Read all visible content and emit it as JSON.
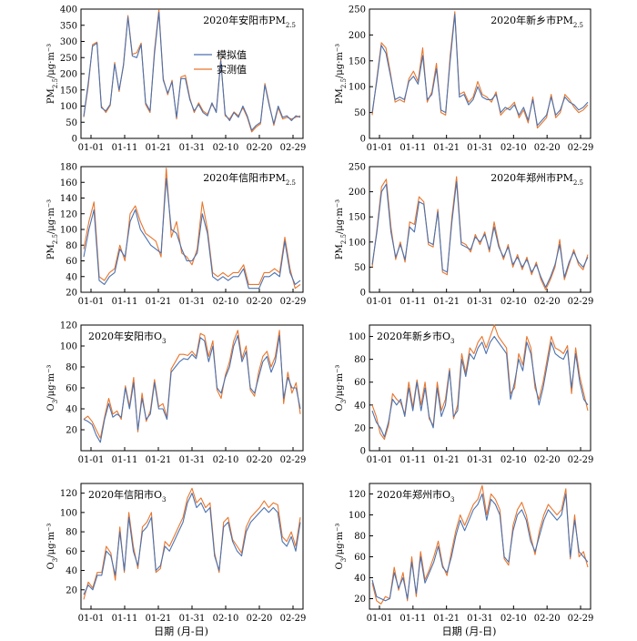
{
  "figure": {
    "xlabel": "日期 (月-日)",
    "legend": [
      {
        "label": "模拟值",
        "color": "#4a72b0"
      },
      {
        "label": "实测值",
        "color": "#e8762d"
      }
    ],
    "x_ticks": [
      "01-01",
      "01-11",
      "01-21",
      "01-31",
      "02-10",
      "02-20",
      "02-29"
    ],
    "colors": {
      "sim": "#4a72b0",
      "obs": "#e8762d"
    }
  },
  "chart_data": [
    {
      "type": "line",
      "title": "2020年安阳市PM2.5",
      "title_parts": [
        "2020年安阳市PM",
        "2.5"
      ],
      "ylabel": "PM2.5/μg·m⁻³",
      "ylabel_parts": [
        "PM",
        "2.5",
        "/μg·m⁻³"
      ],
      "ylim": [
        0,
        400
      ],
      "yticks": [
        0,
        50,
        100,
        150,
        200,
        250,
        300,
        350,
        400
      ],
      "legend_shown": true,
      "series": [
        {
          "name": "模拟值",
          "values": [
            68,
            170,
            285,
            295,
            95,
            85,
            105,
            230,
            150,
            225,
            375,
            255,
            250,
            290,
            110,
            85,
            260,
            390,
            180,
            140,
            175,
            65,
            185,
            185,
            120,
            85,
            105,
            80,
            70,
            110,
            80,
            240,
            75,
            55,
            80,
            65,
            100,
            70,
            25,
            40,
            50,
            165,
            100,
            45,
            100,
            65,
            70,
            55,
            70,
            65
          ]
        },
        {
          "name": "实测值",
          "values": [
            66,
            160,
            290,
            298,
            100,
            80,
            102,
            235,
            145,
            230,
            380,
            260,
            265,
            295,
            105,
            80,
            270,
            398,
            185,
            135,
            180,
            60,
            190,
            195,
            125,
            80,
            110,
            85,
            75,
            105,
            85,
            245,
            70,
            60,
            82,
            70,
            95,
            65,
            20,
            35,
            45,
            170,
            105,
            40,
            95,
            60,
            65,
            60,
            65,
            70
          ]
        }
      ]
    },
    {
      "type": "line",
      "title": "2020年新乡市PM2.5",
      "title_parts": [
        "2020年新乡市PM",
        "2.5"
      ],
      "ylabel": "PM2.5/μg·m⁻³",
      "ylabel_parts": [
        "PM",
        "2.5",
        "/μg·m⁻³"
      ],
      "ylim": [
        0,
        250
      ],
      "yticks": [
        0,
        50,
        100,
        150,
        200,
        250
      ],
      "legend_shown": false,
      "series": [
        {
          "name": "模拟值",
          "values": [
            50,
            110,
            180,
            165,
            120,
            75,
            80,
            75,
            110,
            120,
            105,
            160,
            75,
            85,
            135,
            55,
            50,
            150,
            240,
            80,
            85,
            65,
            75,
            100,
            80,
            75,
            75,
            85,
            50,
            60,
            55,
            65,
            45,
            60,
            35,
            75,
            25,
            35,
            45,
            80,
            45,
            55,
            80,
            70,
            65,
            55,
            60,
            70
          ]
        },
        {
          "name": "实测值",
          "values": [
            45,
            115,
            185,
            175,
            125,
            70,
            75,
            70,
            115,
            130,
            110,
            175,
            70,
            90,
            145,
            50,
            45,
            160,
            245,
            85,
            90,
            70,
            80,
            110,
            85,
            80,
            70,
            90,
            45,
            55,
            60,
            70,
            40,
            55,
            30,
            80,
            20,
            30,
            40,
            85,
            40,
            50,
            85,
            75,
            60,
            50,
            55,
            65
          ]
        }
      ]
    },
    {
      "type": "line",
      "title": "2020年信阳市PM2.5",
      "title_parts": [
        "2020年信阳市PM",
        "2.5"
      ],
      "ylabel": "PM2.5/μg·m⁻³",
      "ylabel_parts": [
        "PM",
        "2.5",
        "/μg·m⁻³"
      ],
      "ylim": [
        20,
        180
      ],
      "yticks": [
        20,
        40,
        60,
        80,
        100,
        120,
        140,
        160,
        180
      ],
      "legend_shown": false,
      "series": [
        {
          "name": "模拟值",
          "values": [
            65,
            100,
            125,
            35,
            30,
            40,
            45,
            75,
            65,
            110,
            125,
            100,
            90,
            80,
            75,
            70,
            165,
            100,
            95,
            75,
            60,
            60,
            70,
            120,
            95,
            40,
            35,
            40,
            35,
            40,
            40,
            50,
            25,
            25,
            25,
            40,
            40,
            45,
            40,
            85,
            45,
            30,
            35
          ]
        },
        {
          "name": "实测值",
          "values": [
            75,
            110,
            135,
            40,
            35,
            45,
            50,
            80,
            60,
            120,
            130,
            110,
            95,
            90,
            85,
            65,
            178,
            90,
            110,
            70,
            65,
            55,
            75,
            135,
            100,
            45,
            40,
            45,
            40,
            45,
            45,
            55,
            30,
            30,
            30,
            45,
            45,
            50,
            45,
            90,
            50,
            25,
            30
          ]
        }
      ]
    },
    {
      "type": "line",
      "title": "2020年郑州市PM2.5",
      "title_parts": [
        "2020年郑州市PM",
        "2.5"
      ],
      "ylabel": "PM2.5/μg·m⁻³",
      "ylabel_parts": [
        "PM",
        "2.5",
        "/μg·m⁻³"
      ],
      "ylim": [
        0,
        250
      ],
      "yticks": [
        0,
        50,
        100,
        150,
        200,
        250
      ],
      "legend_shown": false,
      "series": [
        {
          "name": "模拟值",
          "values": [
            55,
            120,
            200,
            215,
            120,
            70,
            95,
            65,
            130,
            120,
            180,
            175,
            100,
            95,
            160,
            45,
            40,
            140,
            220,
            95,
            90,
            85,
            110,
            100,
            115,
            85,
            130,
            90,
            70,
            90,
            55,
            70,
            50,
            65,
            40,
            55,
            30,
            10,
            30,
            55,
            95,
            30,
            60,
            80,
            60,
            50,
            70
          ]
        },
        {
          "name": "实测值",
          "values": [
            50,
            125,
            210,
            225,
            130,
            65,
            100,
            60,
            140,
            135,
            190,
            180,
            95,
            90,
            165,
            40,
            35,
            150,
            230,
            100,
            95,
            80,
            115,
            95,
            120,
            80,
            140,
            95,
            65,
            95,
            50,
            75,
            45,
            70,
            35,
            60,
            25,
            5,
            25,
            50,
            105,
            25,
            55,
            85,
            55,
            45,
            75
          ]
        }
      ]
    },
    {
      "type": "line",
      "title": "2020年安阳市O3",
      "title_parts": [
        "2020年安阳市O",
        "3"
      ],
      "ylabel": "O3/μg·m⁻³",
      "ylabel_parts": [
        "O",
        "3",
        "/μg·m⁻³"
      ],
      "ylim": [
        0,
        120
      ],
      "yticks": [
        20,
        40,
        60,
        80,
        100,
        120
      ],
      "legend_shown": false,
      "series": [
        {
          "name": "模拟值",
          "values": [
            30,
            28,
            25,
            15,
            8,
            30,
            45,
            32,
            35,
            32,
            60,
            40,
            65,
            20,
            50,
            30,
            35,
            65,
            40,
            40,
            30,
            75,
            80,
            85,
            88,
            87,
            92,
            88,
            108,
            105,
            85,
            100,
            60,
            55,
            70,
            80,
            100,
            110,
            85,
            95,
            60,
            55,
            70,
            85,
            90,
            75,
            85,
            110,
            50,
            70,
            60,
            60,
            40
          ]
        },
        {
          "name": "实测值",
          "values": [
            30,
            33,
            28,
            20,
            12,
            32,
            50,
            35,
            38,
            30,
            62,
            42,
            70,
            18,
            55,
            28,
            38,
            68,
            42,
            45,
            32,
            78,
            85,
            92,
            92,
            91,
            95,
            90,
            112,
            110,
            90,
            105,
            58,
            50,
            72,
            85,
            105,
            115,
            88,
            100,
            58,
            52,
            75,
            90,
            95,
            80,
            90,
            115,
            45,
            75,
            55,
            65,
            35
          ]
        }
      ]
    },
    {
      "type": "line",
      "title": "2020年新乡市O3",
      "title_parts": [
        "2020年新乡市O",
        "3"
      ],
      "ylabel": "O3/μg·m⁻³",
      "ylabel_parts": [
        "O",
        "3",
        "/μg·m⁻³"
      ],
      "ylim": [
        0,
        110
      ],
      "yticks": [
        0,
        20,
        40,
        60,
        80,
        100
      ],
      "legend_shown": false,
      "series": [
        {
          "name": "模拟值",
          "values": [
            35,
            25,
            20,
            12,
            25,
            45,
            40,
            45,
            30,
            55,
            35,
            60,
            35,
            55,
            30,
            20,
            55,
            30,
            40,
            70,
            30,
            35,
            80,
            65,
            85,
            80,
            90,
            95,
            85,
            95,
            100,
            95,
            90,
            85,
            45,
            60,
            80,
            70,
            95,
            85,
            60,
            40,
            55,
            75,
            95,
            85,
            82,
            80,
            88,
            55,
            85,
            60,
            45,
            40
          ]
        },
        {
          "name": "实测值",
          "values": [
            40,
            30,
            15,
            10,
            22,
            50,
            45,
            42,
            32,
            60,
            38,
            62,
            40,
            60,
            28,
            22,
            60,
            35,
            45,
            72,
            28,
            40,
            85,
            68,
            90,
            85,
            95,
            100,
            90,
            100,
            110,
            100,
            95,
            90,
            50,
            55,
            85,
            75,
            100,
            90,
            55,
            45,
            60,
            80,
            100,
            90,
            88,
            85,
            92,
            50,
            90,
            65,
            50,
            35
          ]
        }
      ]
    },
    {
      "type": "line",
      "title": "2020年信阳市O3",
      "title_parts": [
        "2020年信阳市O",
        "3"
      ],
      "ylabel": "O3/μg·m⁻³",
      "ylabel_parts": [
        "O",
        "3",
        "/μg·m⁻³"
      ],
      "ylim": [
        0,
        130
      ],
      "yticks": [
        20,
        40,
        60,
        80,
        100,
        120
      ],
      "legend_shown": false,
      "series": [
        {
          "name": "模拟值",
          "values": [
            15,
            25,
            20,
            35,
            35,
            60,
            55,
            35,
            80,
            40,
            95,
            60,
            45,
            80,
            85,
            95,
            40,
            45,
            65,
            60,
            70,
            80,
            90,
            110,
            120,
            105,
            110,
            100,
            105,
            55,
            40,
            85,
            90,
            70,
            60,
            55,
            80,
            90,
            95,
            100,
            105,
            100,
            105,
            100,
            70,
            65,
            75,
            60,
            90
          ]
        },
        {
          "name": "实测值",
          "values": [
            10,
            28,
            22,
            38,
            38,
            65,
            58,
            30,
            85,
            38,
            100,
            65,
            42,
            85,
            90,
            100,
            38,
            42,
            70,
            65,
            75,
            85,
            95,
            115,
            125,
            110,
            115,
            105,
            110,
            58,
            38,
            90,
            95,
            72,
            65,
            58,
            85,
            95,
            100,
            105,
            112,
            105,
            110,
            108,
            75,
            70,
            80,
            65,
            95
          ]
        }
      ]
    },
    {
      "type": "line",
      "title": "2020年郑州市O3",
      "title_parts": [
        "2020年郑州市O",
        "3"
      ],
      "ylabel": "O3/μg·m⁻³",
      "ylabel_parts": [
        "O",
        "3",
        "/μg·m⁻³"
      ],
      "ylim": [
        10,
        130
      ],
      "yticks": [
        20,
        40,
        60,
        80,
        100,
        120
      ],
      "legend_shown": false,
      "series": [
        {
          "name": "模拟值",
          "values": [
            38,
            22,
            20,
            18,
            20,
            45,
            30,
            40,
            20,
            55,
            25,
            60,
            35,
            45,
            55,
            70,
            50,
            45,
            60,
            80,
            95,
            85,
            95,
            105,
            110,
            120,
            95,
            115,
            110,
            100,
            60,
            55,
            85,
            100,
            105,
            95,
            75,
            65,
            80,
            95,
            105,
            100,
            95,
            100,
            120,
            60,
            95,
            65,
            60,
            55
          ]
        },
        {
          "name": "实测值",
          "values": [
            35,
            18,
            15,
            22,
            20,
            50,
            28,
            45,
            18,
            60,
            22,
            65,
            38,
            48,
            60,
            75,
            52,
            42,
            65,
            85,
            100,
            90,
            100,
            110,
            115,
            128,
            100,
            120,
            115,
            105,
            58,
            52,
            90,
            105,
            112,
            100,
            80,
            62,
            85,
            100,
            110,
            105,
            100,
            105,
            125,
            58,
            100,
            60,
            65,
            50
          ]
        }
      ]
    }
  ]
}
